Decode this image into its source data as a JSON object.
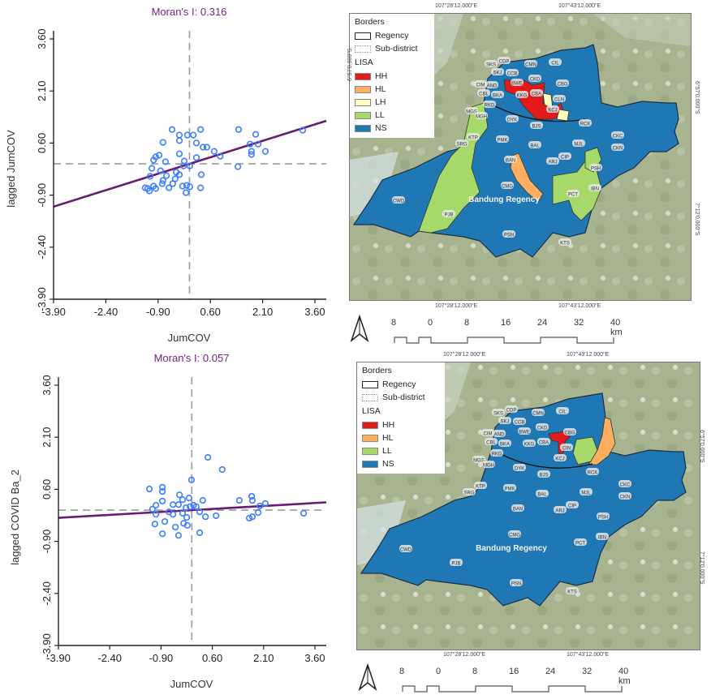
{
  "chart_data": [
    {
      "type": "scatter",
      "title": "Moran's I: 0.316",
      "xlabel": "JumCOV",
      "ylabel": "lagged JumCOV",
      "xlim": [
        -3.9,
        3.9
      ],
      "ylim": [
        -3.9,
        3.9
      ],
      "xticks": [
        "-3.90",
        "-2.40",
        "-0.90",
        "0.60",
        "2.10",
        "3.60"
      ],
      "yticks": [
        "-3.90",
        "-2.40",
        "-0.90",
        "0.60",
        "2.10",
        "3.60"
      ],
      "xtick_values": [
        -3.9,
        -2.4,
        -0.9,
        0.6,
        2.1,
        3.6
      ],
      "ytick_values": [
        -3.9,
        -2.4,
        -0.9,
        0.6,
        2.1,
        3.6
      ],
      "mean_lines": {
        "x": 0,
        "y": 0,
        "style": "dashed"
      },
      "regression": {
        "slope": 0.316,
        "intercept": 0.0
      },
      "point_color": "#3b7dff",
      "line_color": "#6a1b75",
      "points": [
        [
          -0.5,
          0.99
        ],
        [
          -0.29,
          0.83
        ],
        [
          -0.06,
          0.83
        ],
        [
          0.11,
          0.83
        ],
        [
          0.32,
          0.99
        ],
        [
          -0.76,
          0.62
        ],
        [
          -0.29,
          0.67
        ],
        [
          0.2,
          0.6
        ],
        [
          0.39,
          0.48
        ],
        [
          0.5,
          0.48
        ],
        [
          0.71,
          0.36
        ],
        [
          0.88,
          0.22
        ],
        [
          1.41,
          0.99
        ],
        [
          1.9,
          0.85
        ],
        [
          1.74,
          0.57
        ],
        [
          1.78,
          0.36
        ],
        [
          1.97,
          0.57
        ],
        [
          2.18,
          0.36
        ],
        [
          1.78,
          0.27
        ],
        [
          1.39,
          -0.08
        ],
        [
          3.25,
          0.97
        ],
        [
          -0.29,
          0.29
        ],
        [
          0.01,
          -0.06
        ],
        [
          0.2,
          0.18
        ],
        [
          -0.97,
          0.2
        ],
        [
          -0.87,
          0.25
        ],
        [
          -1.03,
          0.11
        ],
        [
          -0.69,
          0.06
        ],
        [
          -1.08,
          -0.13
        ],
        [
          -0.83,
          -0.2
        ],
        [
          -0.66,
          -0.34
        ],
        [
          -0.76,
          -0.48
        ],
        [
          -1.13,
          -0.36
        ],
        [
          -0.78,
          -0.57
        ],
        [
          -1.03,
          -0.64
        ],
        [
          -0.59,
          -0.69
        ],
        [
          -1.2,
          -0.71
        ],
        [
          -0.97,
          -0.71
        ],
        [
          -1.15,
          -0.78
        ],
        [
          -1.27,
          -0.69
        ],
        [
          -0.41,
          -0.43
        ],
        [
          -0.29,
          -0.31
        ],
        [
          -0.38,
          -0.24
        ],
        [
          -0.17,
          -0.06
        ],
        [
          -0.15,
          0.08
        ],
        [
          -0.2,
          -0.64
        ],
        [
          -0.1,
          -0.83
        ],
        [
          0.01,
          -0.66
        ],
        [
          0.32,
          -0.69
        ],
        [
          0.34,
          -0.31
        ],
        [
          -0.48,
          -0.57
        ],
        [
          -0.08,
          -0.62
        ]
      ]
    },
    {
      "type": "scatter",
      "title": "Moran's I: 0.057",
      "xlabel": "JumCOV",
      "ylabel": "lagged COVID Ba_2",
      "xlim": [
        -3.9,
        3.9
      ],
      "ylim": [
        -3.9,
        3.9
      ],
      "xticks": [
        "-3.90",
        "-2.40",
        "-0.90",
        "0.60",
        "2.10",
        "3.60"
      ],
      "yticks": [
        "-3.90",
        "-2.40",
        "-0.90",
        "0.60",
        "2.10",
        "3.60"
      ],
      "xtick_values": [
        -3.9,
        -2.4,
        -0.9,
        0.6,
        2.1,
        3.6
      ],
      "ytick_values": [
        -3.9,
        -2.4,
        -0.9,
        0.6,
        2.1,
        3.6
      ],
      "mean_lines": {
        "x": 0,
        "y": 0,
        "style": "dashed"
      },
      "regression": {
        "slope": 0.057,
        "intercept": 0.0
      },
      "point_color": "#3b7dff",
      "line_color": "#6a1b75",
      "points": [
        [
          -1.24,
          0.61
        ],
        [
          -0.86,
          0.66
        ],
        [
          -0.86,
          0.54
        ],
        [
          -0.86,
          0.26
        ],
        [
          -1.05,
          0.14
        ],
        [
          -1.15,
          0.03
        ],
        [
          -1.05,
          -0.12
        ],
        [
          -1.08,
          -0.4
        ],
        [
          -0.86,
          -0.68
        ],
        [
          -0.79,
          -0.33
        ],
        [
          -0.67,
          -0.05
        ],
        [
          -0.55,
          0.16
        ],
        [
          -0.39,
          0.16
        ],
        [
          -0.36,
          0.44
        ],
        [
          -0.27,
          0.3
        ],
        [
          -0.08,
          0.35
        ],
        [
          -0.17,
          0.07
        ],
        [
          -0.01,
          0.87
        ],
        [
          0.47,
          1.52
        ],
        [
          0.89,
          1.17
        ],
        [
          0.32,
          0.28
        ],
        [
          0.13,
          0.1
        ],
        [
          0.23,
          -0.05
        ],
        [
          0.4,
          -0.19
        ],
        [
          -0.05,
          0.1
        ],
        [
          -0.27,
          -0.09
        ],
        [
          -0.15,
          -0.21
        ],
        [
          -0.48,
          -0.49
        ],
        [
          -0.39,
          -0.73
        ],
        [
          0.23,
          -0.65
        ],
        [
          0.71,
          -0.16
        ],
        [
          1.39,
          0.28
        ],
        [
          1.75,
          0.4
        ],
        [
          1.77,
          0.28
        ],
        [
          1.68,
          -0.23
        ],
        [
          1.77,
          -0.19
        ],
        [
          1.94,
          -0.07
        ],
        [
          2.15,
          0.19
        ],
        [
          1.99,
          0.12
        ],
        [
          3.27,
          -0.09
        ],
        [
          0.05,
          0.14
        ],
        [
          -0.55,
          -0.12
        ],
        [
          -0.24,
          -0.38
        ],
        [
          -0.13,
          -0.44
        ]
      ]
    }
  ],
  "maps": [
    {
      "region_label": "Bandung Regency",
      "coords_top": [
        "107°28'12.000\"E",
        "107°43'12.000\"E"
      ],
      "coords_bottom": [
        "107°28'12.000\"E",
        "107°43'12.000\"E"
      ],
      "coords_left": [
        "6°57'0.000\"S",
        "7°12'0.000\"S"
      ],
      "coords_right": [
        "6°57'0.000\"S",
        "7°12'0.000\"S"
      ],
      "legend": {
        "borders_title": "Borders",
        "borders": [
          {
            "label": "Regency"
          },
          {
            "label": "Sub-district"
          }
        ],
        "lisa_title": "LISA",
        "classes": [
          {
            "label": "HH",
            "color": "#e31a1c"
          },
          {
            "label": "HL",
            "color": "#fdae61"
          },
          {
            "label": "LH",
            "color": "#ffffbf"
          },
          {
            "label": "LL",
            "color": "#a6d96a"
          },
          {
            "label": "NS",
            "color": "#1f78b4"
          }
        ]
      },
      "district_labels": [
        "SKS",
        "CDP",
        "CMN",
        "CIL",
        "SKJ",
        "CCB",
        "BWE",
        "CKD",
        "CBG",
        "CIM",
        "AND",
        "CBL",
        "BKA",
        "KKG",
        "CBA",
        "CLN",
        "RKD",
        "KCJ",
        "MGS",
        "MGH",
        "DYK",
        "BJS",
        "RCK",
        "CKC",
        "SRG",
        "KTP",
        "PMK",
        "BAL",
        "CKN",
        "MJL",
        "CIP",
        "BAN",
        "ARJ",
        "PSH",
        "CMG",
        "PCT",
        "IBN",
        "CWD",
        "PJB",
        "PSN",
        "KTS"
      ],
      "scale": {
        "labels": [
          "8",
          "0",
          "8",
          "16",
          "24",
          "32",
          "40 km"
        ]
      },
      "north_arrow": "north-arrow-icon"
    },
    {
      "region_label": "Bandung Regency",
      "coords_top": [
        "107°28'12.000\"E",
        "107°43'12.000\"E"
      ],
      "coords_bottom": [
        "107°28'12.000\"E",
        "107°43'12.000\"E"
      ],
      "coords_left": [
        "6°57'0.000\"S",
        "7°12'0.000\"S"
      ],
      "coords_right": [
        "6°57'0.000\"S",
        "7°12'0.000\"S"
      ],
      "legend": {
        "borders_title": "Borders",
        "borders": [
          {
            "label": "Regency"
          },
          {
            "label": "Sub-district"
          }
        ],
        "lisa_title": "LISA",
        "classes": [
          {
            "label": "HH",
            "color": "#e31a1c"
          },
          {
            "label": "HL",
            "color": "#fdae61"
          },
          {
            "label": "LL",
            "color": "#a6d96a"
          },
          {
            "label": "NS",
            "color": "#1f78b4"
          }
        ]
      },
      "district_labels": [
        "SKS",
        "CDP",
        "CMN",
        "CIL",
        "SKJ",
        "CCB",
        "BWE",
        "CKD",
        "CBG",
        "CIM",
        "AND",
        "CBL",
        "BKA",
        "KKG",
        "CBA",
        "CIN",
        "RKD",
        "KCJ",
        "MGS",
        "MGH",
        "DYK",
        "BJS",
        "RCK",
        "CKC",
        "SRG",
        "KTP",
        "PMK",
        "BAL",
        "CKN",
        "MJL",
        "CIP",
        "BAN",
        "ARJ",
        "PSH",
        "CMG",
        "PCT",
        "IBN",
        "CWD",
        "PJB",
        "PSN",
        "KTS"
      ],
      "scale": {
        "labels": [
          "8",
          "0",
          "8",
          "16",
          "24",
          "32",
          "40 km"
        ]
      },
      "north_arrow": "north-arrow-icon"
    }
  ]
}
